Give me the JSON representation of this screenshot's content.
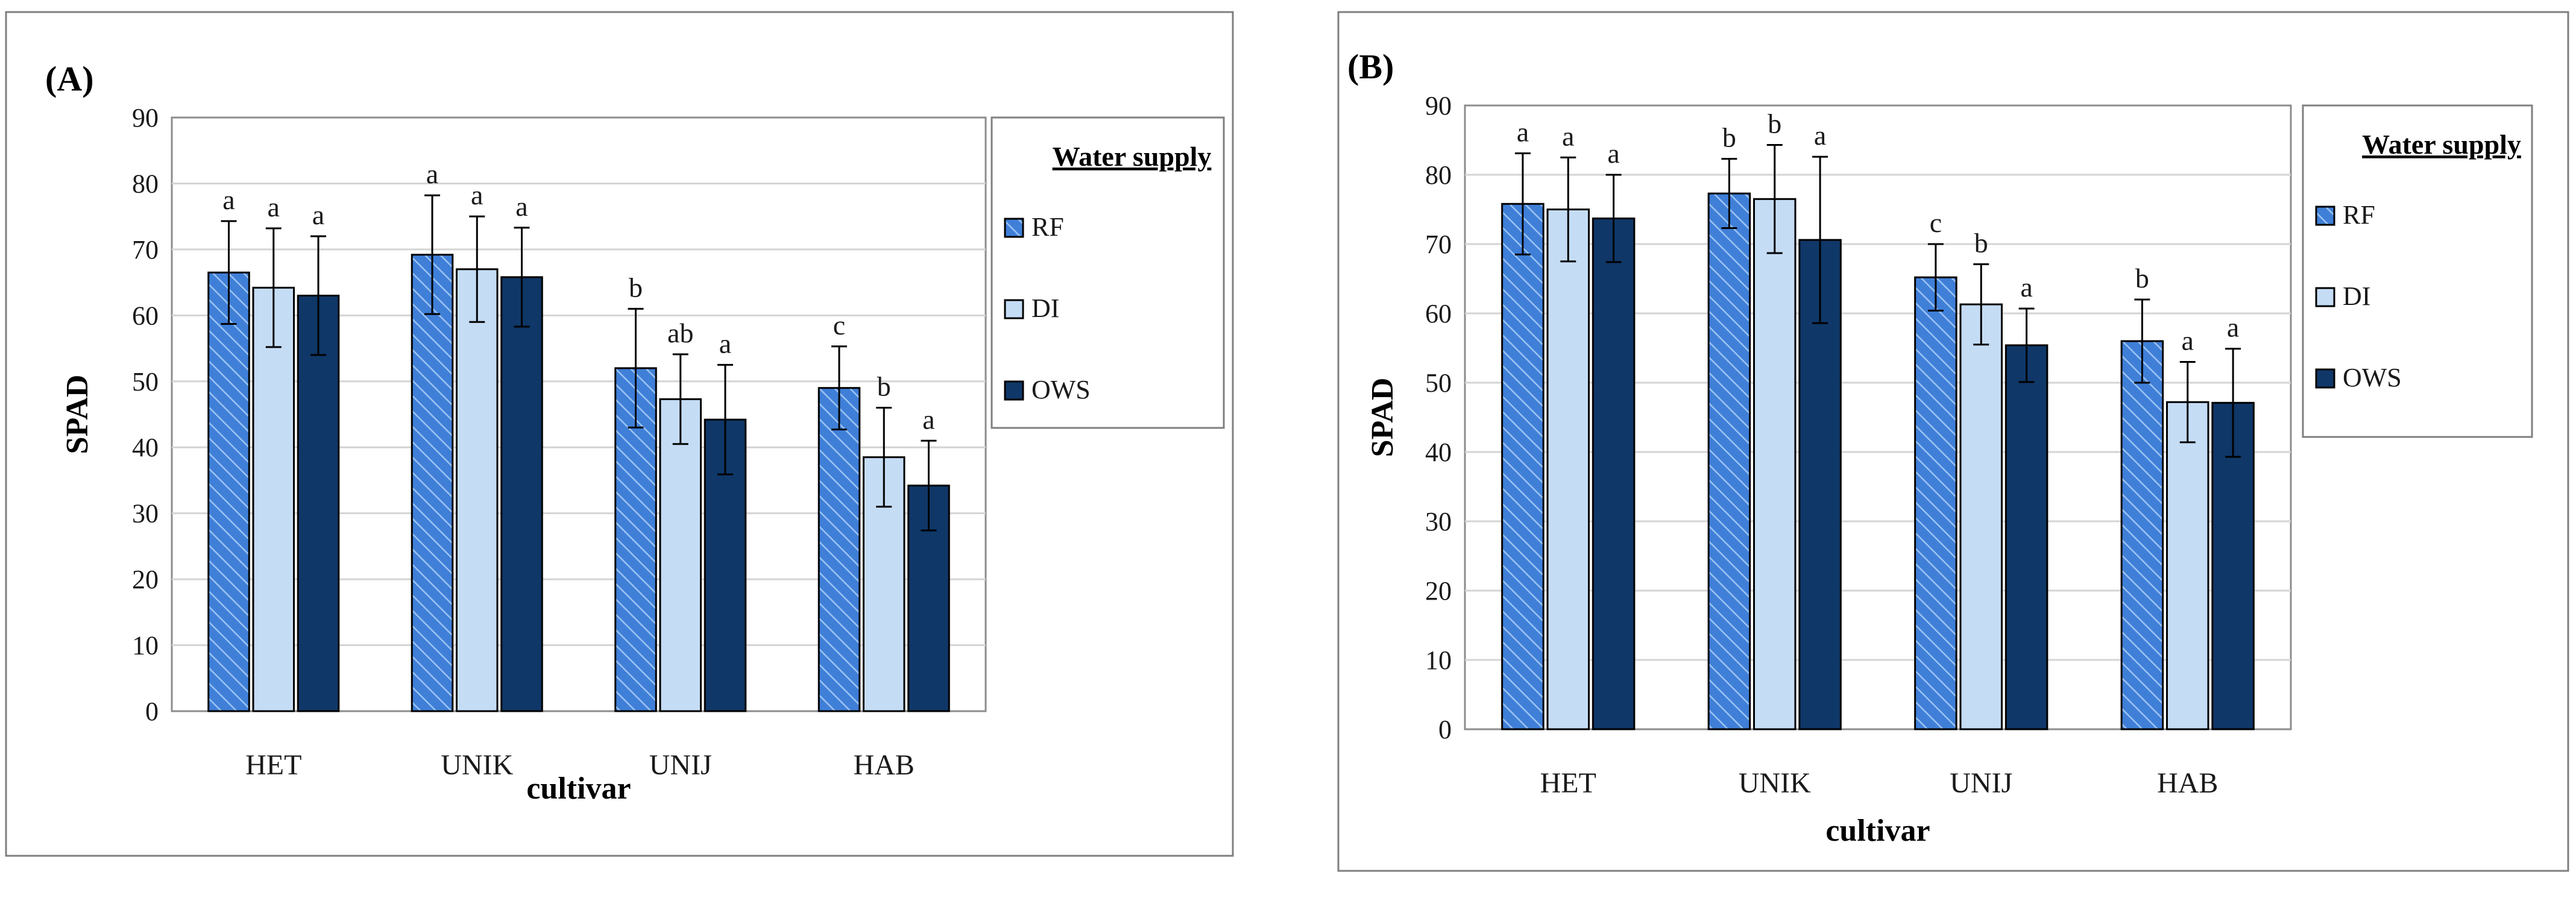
{
  "series_styles": {
    "RF": {
      "fill": "#3f7fd8",
      "hatch": "#9cc3f3"
    },
    "DI": {
      "fill": "#c5dcf5"
    },
    "OWS": {
      "fill": "#0f3768"
    }
  },
  "chart_data": [
    {
      "panel_label": "(A)",
      "type": "bar",
      "xlabel": "cultivar",
      "ylabel": "SPAD",
      "ylim": [
        0,
        90
      ],
      "yticks": [
        0,
        10,
        20,
        30,
        40,
        50,
        60,
        70,
        80,
        90
      ],
      "grid": true,
      "legend": {
        "title": "Water supply",
        "position": "right"
      },
      "categories": [
        "HET",
        "UNIK",
        "UNIJ",
        "HAB"
      ],
      "series": [
        {
          "name": "RF",
          "values": [
            66.5,
            69.2,
            52.0,
            49.0
          ],
          "errors": [
            7.8,
            9.0,
            9.0,
            6.3
          ],
          "letters": [
            "a",
            "a",
            "b",
            "c"
          ]
        },
        {
          "name": "DI",
          "values": [
            64.2,
            67.0,
            47.3,
            38.5
          ],
          "errors": [
            9.0,
            8.0,
            6.8,
            7.5
          ],
          "letters": [
            "a",
            "a",
            "ab",
            "b"
          ]
        },
        {
          "name": "OWS",
          "values": [
            63.0,
            65.8,
            44.2,
            34.2
          ],
          "errors": [
            9.0,
            7.5,
            8.3,
            6.8
          ],
          "letters": [
            "a",
            "a",
            "a",
            "a"
          ]
        }
      ]
    },
    {
      "panel_label": "(B)",
      "type": "bar",
      "xlabel": "cultivar",
      "ylabel": "SPAD",
      "ylim": [
        0,
        90
      ],
      "yticks": [
        0,
        10,
        20,
        30,
        40,
        50,
        60,
        70,
        80,
        90
      ],
      "grid": true,
      "legend": {
        "title": "Water supply",
        "position": "right"
      },
      "categories": [
        "HET",
        "UNIK",
        "UNIJ",
        "HAB"
      ],
      "series": [
        {
          "name": "RF",
          "values": [
            75.8,
            77.3,
            65.2,
            56.0
          ],
          "errors": [
            7.3,
            5.0,
            4.8,
            6.0
          ],
          "letters": [
            "a",
            "b",
            "c",
            "b"
          ]
        },
        {
          "name": "DI",
          "values": [
            75.0,
            76.5,
            61.3,
            47.2
          ],
          "errors": [
            7.5,
            7.8,
            5.8,
            5.8
          ],
          "letters": [
            "a",
            "b",
            "b",
            "a"
          ]
        },
        {
          "name": "OWS",
          "values": [
            73.7,
            70.6,
            55.4,
            47.1
          ],
          "errors": [
            6.3,
            12.0,
            5.3,
            7.8
          ],
          "letters": [
            "a",
            "a",
            "a",
            "a"
          ]
        }
      ]
    }
  ]
}
